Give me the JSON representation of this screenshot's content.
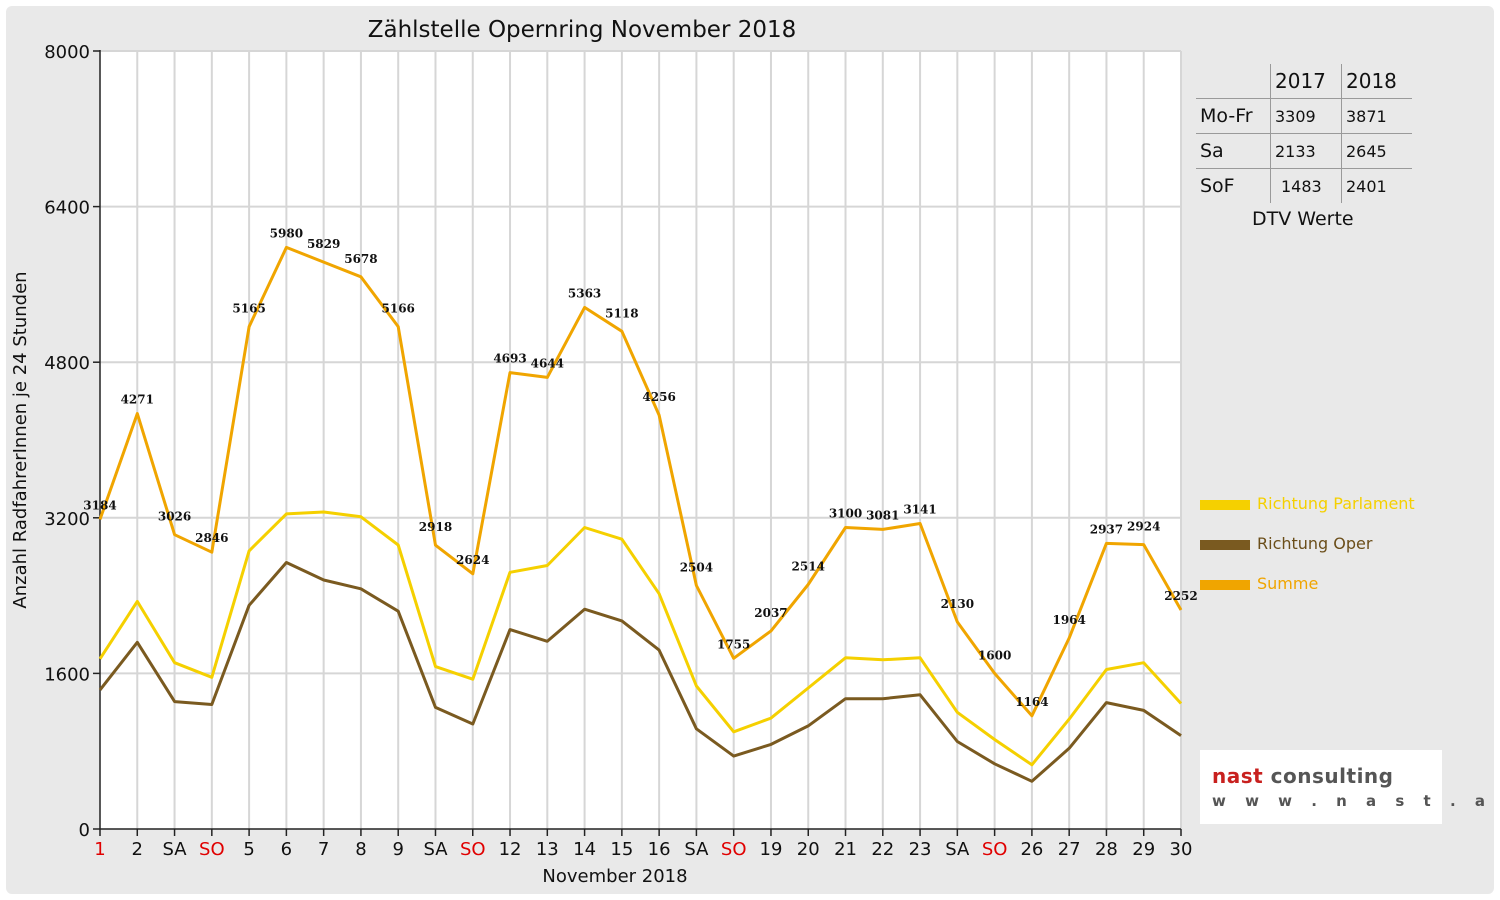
{
  "chart_data": {
    "type": "line",
    "title": "Zählstelle Opernring November 2018",
    "xlabel": "November 2018",
    "ylabel": "Anzahl RadfahrerInnen je 24 Stunden",
    "ylim": [
      0,
      8000
    ],
    "yticks": [
      0,
      1600,
      3200,
      4800,
      6400,
      8000
    ],
    "grid": true,
    "legend_position": "right",
    "categories": [
      "1",
      "2",
      "SA",
      "SO",
      "5",
      "6",
      "7",
      "8",
      "9",
      "SA",
      "SO",
      "12",
      "13",
      "14",
      "15",
      "16",
      "SA",
      "SO",
      "19",
      "20",
      "21",
      "22",
      "23",
      "SA",
      "SO",
      "26",
      "27",
      "28",
      "29",
      "30"
    ],
    "highlighted_categories": [
      "1",
      "SO"
    ],
    "series": [
      {
        "name": "Richtung Parlament",
        "color": "#f5d000",
        "values": [
          1750,
          2340,
          1710,
          1560,
          2860,
          3240,
          3260,
          3210,
          2920,
          1670,
          1540,
          2640,
          2710,
          3100,
          2980,
          2420,
          1470,
          1000,
          1140,
          1450,
          1760,
          1740,
          1760,
          1200,
          920,
          660,
          1130,
          1640,
          1710,
          1290
        ]
      },
      {
        "name": "Richtung Oper",
        "color": "#7a5a20",
        "values": [
          1430,
          1920,
          1310,
          1280,
          2300,
          2740,
          2560,
          2470,
          2240,
          1250,
          1080,
          2050,
          1930,
          2260,
          2140,
          1840,
          1030,
          750,
          870,
          1060,
          1340,
          1340,
          1380,
          900,
          670,
          490,
          830,
          1300,
          1220,
          960
        ]
      },
      {
        "name": "Summe",
        "color": "#f0a500",
        "values": [
          3184,
          4271,
          3026,
          2846,
          5165,
          5980,
          5829,
          5678,
          5166,
          2918,
          2624,
          4693,
          4644,
          5363,
          5118,
          4256,
          2504,
          1755,
          2037,
          2514,
          3100,
          3081,
          3141,
          2130,
          1600,
          1164,
          1964,
          2937,
          2924,
          2252
        ]
      }
    ]
  },
  "dtv_table": {
    "headers": [
      "",
      "2017",
      "2018"
    ],
    "rows": [
      [
        "Mo-Fr",
        "3309",
        "3871"
      ],
      [
        "Sa",
        "2133",
        "2645"
      ],
      [
        "SoF",
        "1483",
        "2401"
      ]
    ],
    "caption": "DTV Werte"
  },
  "logo": {
    "word1": "nast",
    "word2": "consulting",
    "url": "w w w . n a s t . a t"
  }
}
